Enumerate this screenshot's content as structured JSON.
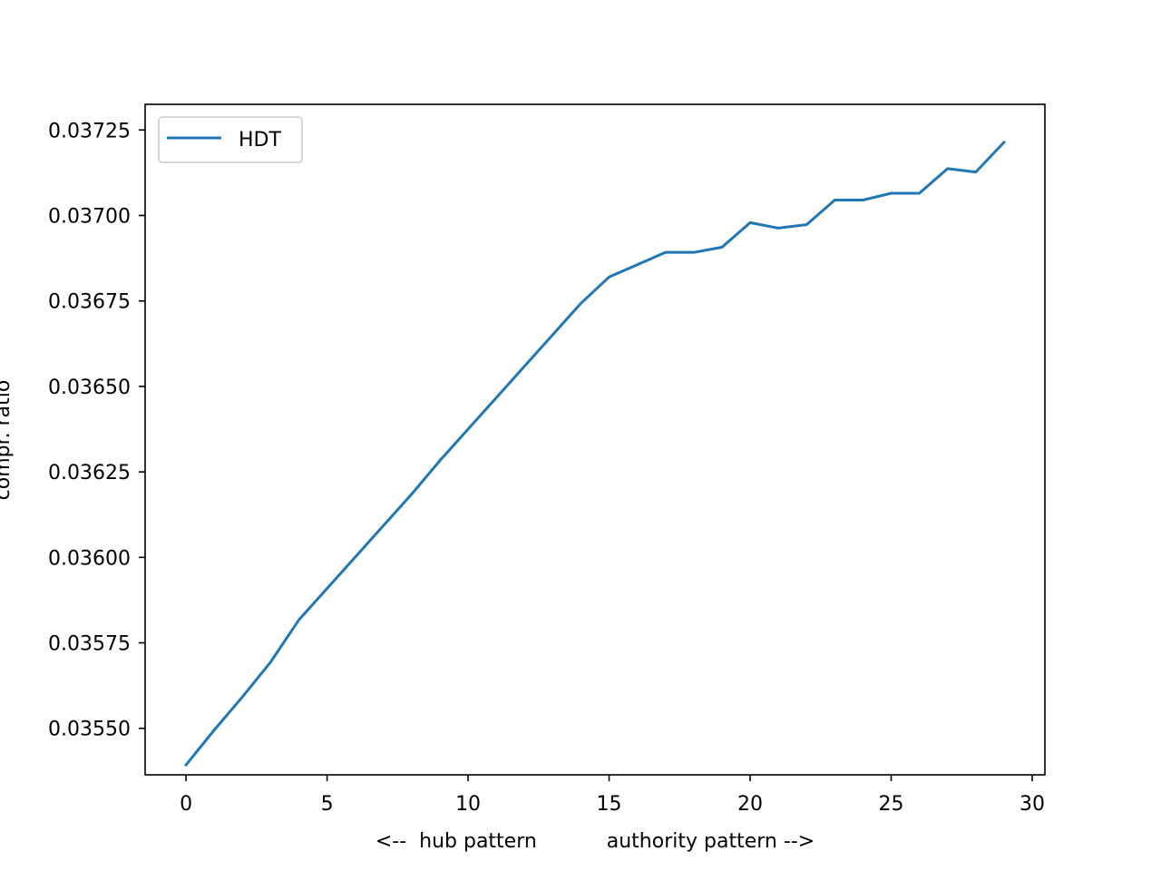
{
  "chart_data": {
    "type": "line",
    "title": "",
    "xlabel": "<--  hub pattern           authority pattern -->",
    "ylabel": "compr. ratio",
    "xlim": [
      -1.45,
      30.45
    ],
    "ylim": [
      0.035364,
      0.037325
    ],
    "x_ticks": [
      0,
      5,
      10,
      15,
      20,
      25,
      30
    ],
    "x_tick_labels": [
      "0",
      "5",
      "10",
      "15",
      "20",
      "25",
      "30"
    ],
    "y_ticks": [
      0.0355,
      0.03575,
      0.036,
      0.03625,
      0.0365,
      0.03675,
      0.037,
      0.03725
    ],
    "y_tick_labels": [
      "0.03550",
      "0.03575",
      "0.03600",
      "0.03625",
      "0.03650",
      "0.03675",
      "0.03700",
      "0.03725"
    ],
    "grid": false,
    "legend": {
      "position": "top-left"
    },
    "series": [
      {
        "name": "HDT",
        "color": "#1f77b4",
        "x": [
          0,
          1,
          2,
          3,
          4,
          5,
          6,
          7,
          8,
          9,
          10,
          11,
          12,
          13,
          14,
          15,
          16,
          17,
          18,
          19,
          20,
          21,
          22,
          23,
          24,
          25,
          26,
          27,
          28,
          29
        ],
        "y": [
          0.035393,
          0.035495,
          0.035592,
          0.035694,
          0.035817,
          0.035909,
          0.036001,
          0.036093,
          0.036185,
          0.036283,
          0.036375,
          0.036467,
          0.036559,
          0.036651,
          0.036743,
          0.03682,
          0.036856,
          0.036892,
          0.036892,
          0.036907,
          0.036979,
          0.036963,
          0.036973,
          0.037045,
          0.037045,
          0.037065,
          0.037065,
          0.037137,
          0.037127,
          0.037214
        ]
      }
    ]
  }
}
